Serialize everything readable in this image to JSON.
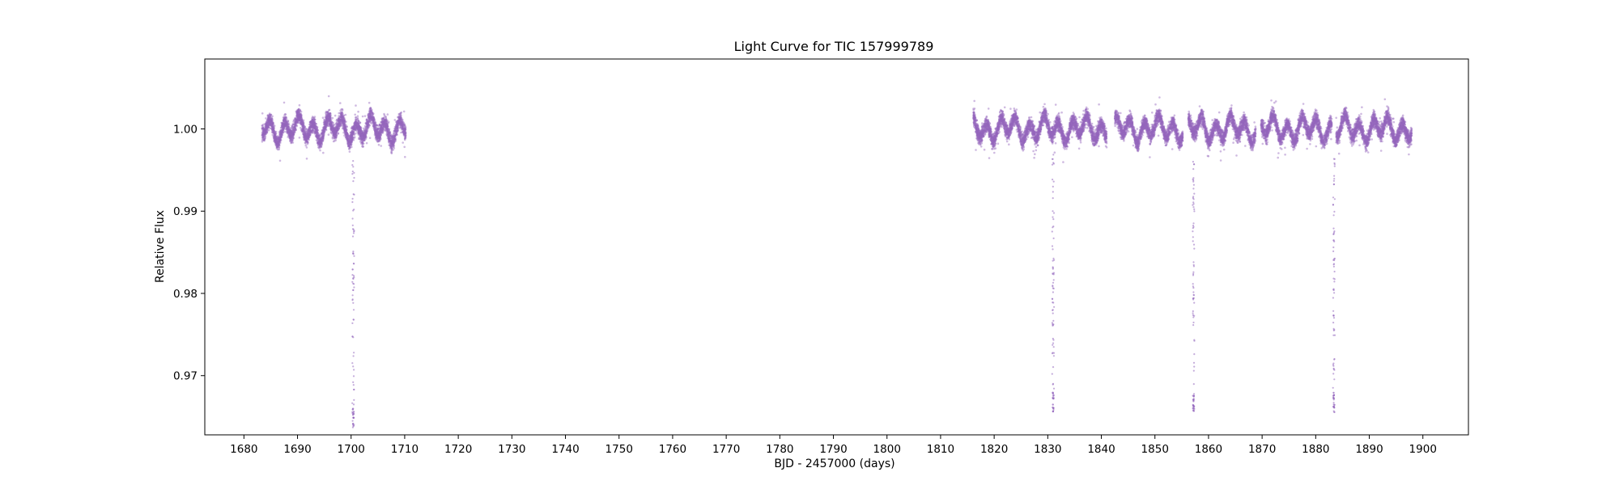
{
  "chart_data": {
    "type": "scatter",
    "title": "Light Curve for TIC 157999789",
    "xlabel": "BJD - 2457000 (days)",
    "ylabel": "Relative Flux",
    "xlim": [
      1672.7,
      1908.5
    ],
    "ylim": [
      0.9628,
      1.0085
    ],
    "xticks": [
      1680,
      1690,
      1700,
      1710,
      1720,
      1730,
      1740,
      1750,
      1760,
      1770,
      1780,
      1790,
      1800,
      1810,
      1820,
      1830,
      1840,
      1850,
      1860,
      1870,
      1880,
      1890,
      1900
    ],
    "yticks": [
      0.97,
      0.98,
      0.99,
      1.0
    ],
    "ytick_labels": [
      "0.97",
      "0.98",
      "0.99",
      "1.00"
    ],
    "grid": false,
    "marker_color": "#9467bd",
    "observing_segments": [
      {
        "x_start": 1683.4,
        "x_end": 1710.2
      },
      {
        "x_start": 1816.1,
        "x_end": 1841.0
      },
      {
        "x_start": 1842.5,
        "x_end": 1855.2
      },
      {
        "x_start": 1856.2,
        "x_end": 1868.8
      },
      {
        "x_start": 1869.8,
        "x_end": 1883.0
      },
      {
        "x_start": 1883.8,
        "x_end": 1897.9
      }
    ],
    "baseline_flux": 1.0,
    "variability_amplitude": 0.0025,
    "transits": [
      {
        "time": 1700.4,
        "min_flux": 0.9635
      },
      {
        "time": 1831.0,
        "min_flux": 0.9655
      },
      {
        "time": 1857.2,
        "min_flux": 0.9655
      },
      {
        "time": 1883.4,
        "min_flux": 0.9655
      }
    ]
  }
}
